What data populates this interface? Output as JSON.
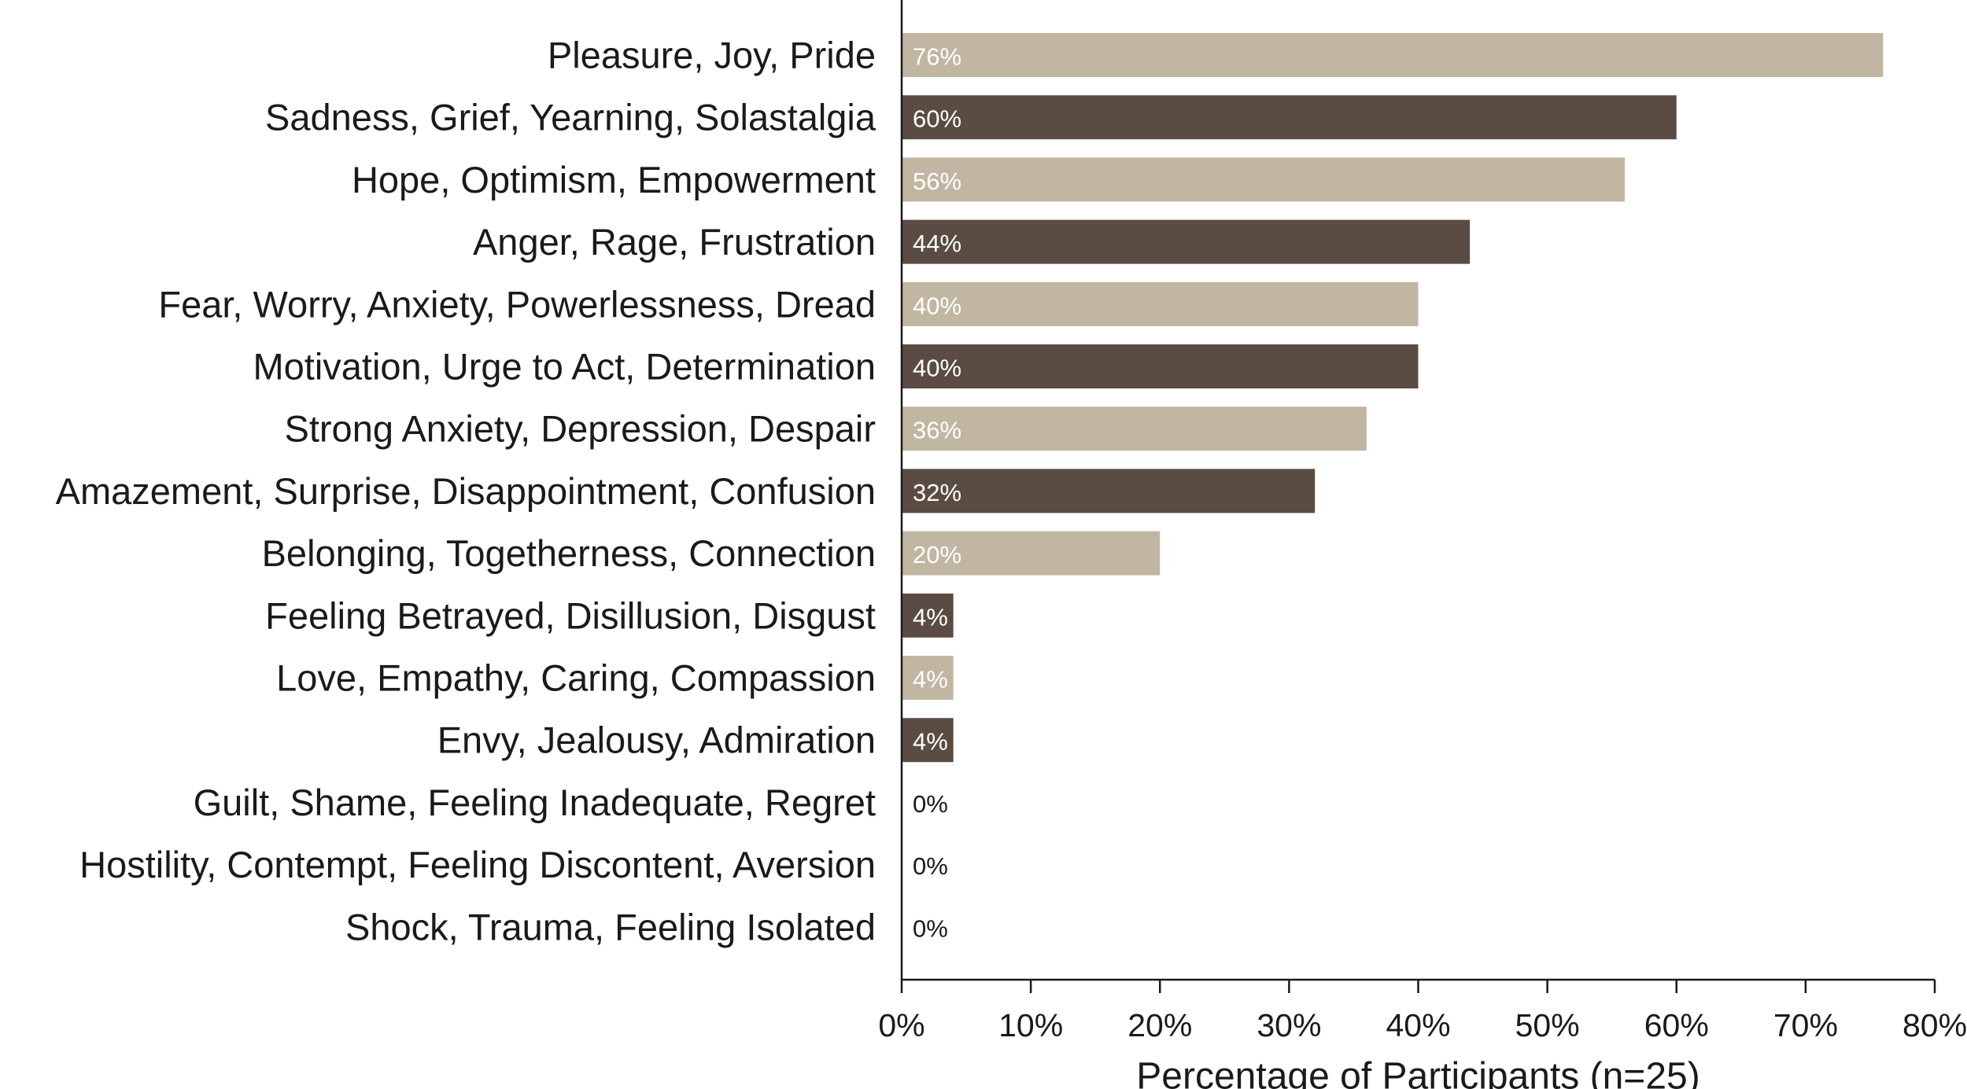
{
  "chart_data": {
    "type": "bar",
    "orientation": "horizontal",
    "categories": [
      "Pleasure, Joy, Pride",
      "Sadness, Grief, Yearning, Solastalgia",
      "Hope, Optimism, Empowerment",
      "Anger, Rage, Frustration",
      "Fear, Worry, Anxiety, Powerlessness, Dread",
      "Motivation, Urge to Act, Determination",
      "Strong Anxiety, Depression, Despair",
      "Amazement, Surprise, Disappointment, Confusion",
      "Belonging, Togetherness, Connection",
      "Feeling Betrayed, Disillusion, Disgust",
      "Love, Empathy, Caring, Compassion",
      "Envy, Jealousy, Admiration",
      "Guilt, Shame, Feeling Inadequate, Regret",
      "Hostility, Contempt, Feeling Discontent, Aversion",
      "Shock, Trauma, Feeling Isolated"
    ],
    "values": [
      76,
      60,
      56,
      44,
      40,
      40,
      36,
      32,
      20,
      4,
      4,
      4,
      0,
      0,
      0
    ],
    "value_labels": [
      "76%",
      "60%",
      "56%",
      "44%",
      "40%",
      "40%",
      "36%",
      "32%",
      "20%",
      "4%",
      "4%",
      "4%",
      "0%",
      "0%",
      "0%"
    ],
    "title": "",
    "xlabel": "Percentage of Participants  (n=25)",
    "ylabel": "",
    "xlim": [
      0,
      80
    ],
    "x_ticks": [
      0,
      10,
      20,
      30,
      40,
      50,
      60,
      70,
      80
    ],
    "x_tick_labels": [
      "0%",
      "10%",
      "20%",
      "30%",
      "40%",
      "50%",
      "60%",
      "70%",
      "80%"
    ],
    "grid": false,
    "legend": "none",
    "colors": {
      "bar_light": "#c1b6a1",
      "bar_dark": "#5a4c43",
      "label_on_light": "#ffffff",
      "label_on_dark": "#ffffff",
      "label_zero": "#1a1a1a",
      "axis": "#1a1a1a"
    }
  }
}
